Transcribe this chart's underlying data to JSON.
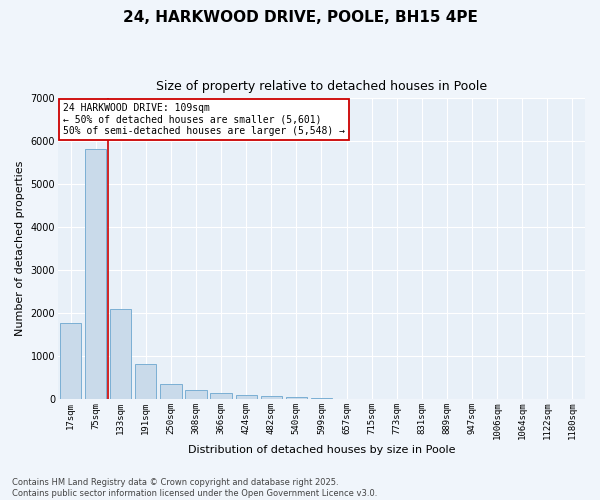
{
  "title": "24, HARKWOOD DRIVE, POOLE, BH15 4PE",
  "subtitle": "Size of property relative to detached houses in Poole",
  "xlabel": "Distribution of detached houses by size in Poole",
  "ylabel": "Number of detached properties",
  "categories": [
    "17sqm",
    "75sqm",
    "133sqm",
    "191sqm",
    "250sqm",
    "308sqm",
    "366sqm",
    "424sqm",
    "482sqm",
    "540sqm",
    "599sqm",
    "657sqm",
    "715sqm",
    "773sqm",
    "831sqm",
    "889sqm",
    "947sqm",
    "1006sqm",
    "1064sqm",
    "1122sqm",
    "1180sqm"
  ],
  "values": [
    1780,
    5820,
    2090,
    820,
    360,
    210,
    130,
    95,
    80,
    55,
    35,
    0,
    0,
    0,
    0,
    0,
    0,
    0,
    0,
    0,
    0
  ],
  "bar_color": "#c9daea",
  "bar_edge_color": "#7bafd4",
  "vline_color": "#cc0000",
  "vline_x": 1.5,
  "ylim": [
    0,
    7000
  ],
  "yticks": [
    0,
    1000,
    2000,
    3000,
    4000,
    5000,
    6000,
    7000
  ],
  "annotation_text": "24 HARKWOOD DRIVE: 109sqm\n← 50% of detached houses are smaller (5,601)\n50% of semi-detached houses are larger (5,548) →",
  "annotation_box_facecolor": "#ffffff",
  "annotation_box_edgecolor": "#cc0000",
  "bg_color": "#e8f0f8",
  "grid_color": "#ffffff",
  "fig_facecolor": "#f0f5fb",
  "footer": "Contains HM Land Registry data © Crown copyright and database right 2025.\nContains public sector information licensed under the Open Government Licence v3.0.",
  "title_fontsize": 11,
  "subtitle_fontsize": 9,
  "ylabel_fontsize": 8,
  "xlabel_fontsize": 8,
  "tick_fontsize": 6.5,
  "footer_fontsize": 6
}
